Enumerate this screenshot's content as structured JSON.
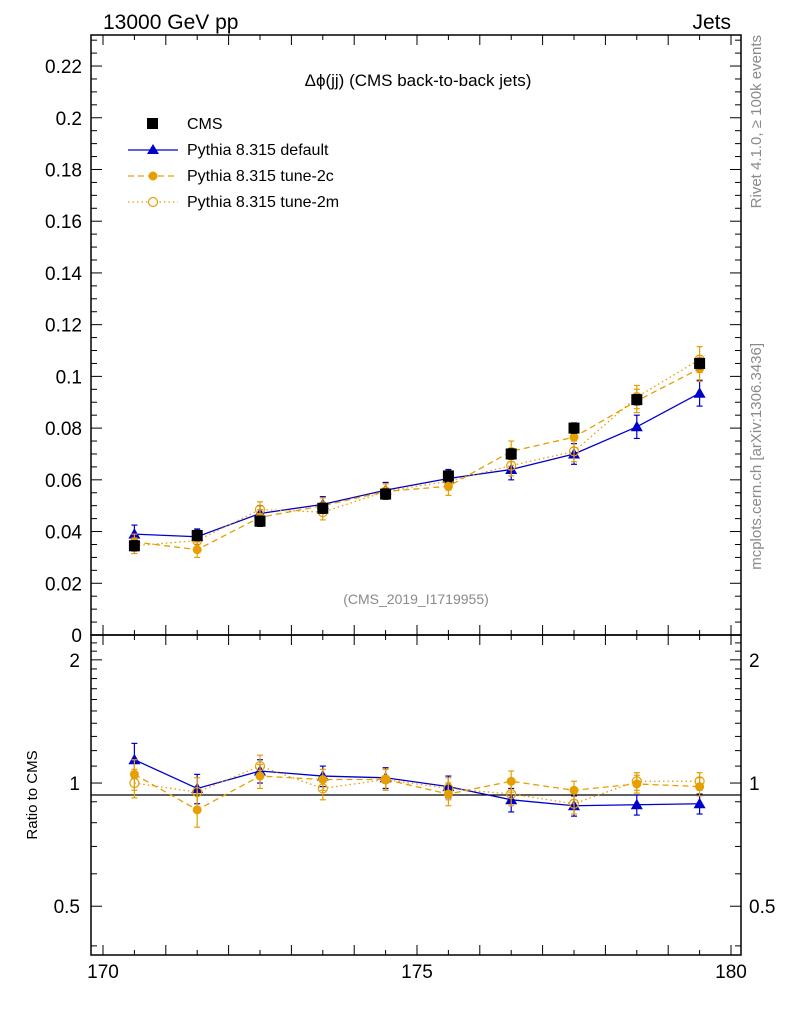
{
  "header": {
    "left": "13000 GeV pp",
    "right": "Jets"
  },
  "chart_data": {
    "type": "line",
    "title": "Δϕ(jj) (CMS back-to-back jets)",
    "analysis_id": "(CMS_2019_I1719955)",
    "side_label_top": "Rivet 4.1.0, ≥ 100k events",
    "side_label_bottom": "mcplots.cern.ch [arXiv:1306.3436]",
    "xlim": [
      170,
      180
    ],
    "ylim": [
      0,
      0.232
    ],
    "x_ticks": [
      "170",
      "175",
      "180"
    ],
    "y_ticks": [
      "0",
      "0.02",
      "0.04",
      "0.06",
      "0.08",
      "0.1",
      "0.12",
      "0.14",
      "0.16",
      "0.18",
      "0.2",
      "0.22"
    ],
    "ratio_ylabel": "Ratio to CMS",
    "ratio_ylim": [
      0.38,
      2.3
    ],
    "ratio_ticks": [
      "0.5",
      "1",
      "2"
    ],
    "x": [
      170.5,
      171.5,
      172.5,
      173.5,
      174.5,
      175.5,
      176.5,
      177.5,
      178.5,
      179.5
    ],
    "series": [
      {
        "name": "CMS",
        "color": "#000000",
        "style": "marker",
        "values": [
          0.0345,
          0.0385,
          0.044,
          0.049,
          0.0545,
          0.0615,
          0.07,
          0.08,
          0.091,
          0.105
        ],
        "errors": [
          0.002,
          0.002,
          0.002,
          0.002,
          0.002,
          0.002,
          0.002,
          0.002,
          0.002,
          0.002
        ]
      },
      {
        "name": "Pythia 8.315 default",
        "color": "#0000cc",
        "style": "solid",
        "values": [
          0.039,
          0.038,
          0.047,
          0.0505,
          0.056,
          0.0605,
          0.064,
          0.07,
          0.0805,
          0.0935
        ],
        "errors": [
          0.0035,
          0.003,
          0.003,
          0.003,
          0.003,
          0.0035,
          0.004,
          0.004,
          0.0045,
          0.005
        ],
        "ratio": [
          1.14,
          0.97,
          1.07,
          1.04,
          1.03,
          0.98,
          0.91,
          0.88,
          0.885,
          0.89
        ],
        "ratio_errors": [
          0.11,
          0.08,
          0.07,
          0.06,
          0.06,
          0.06,
          0.06,
          0.05,
          0.05,
          0.05
        ]
      },
      {
        "name": "Pythia 8.315 tune-2c",
        "color": "#e69f00",
        "style": "dashed",
        "values": [
          0.036,
          0.033,
          0.0455,
          0.05,
          0.0555,
          0.0575,
          0.071,
          0.0765,
          0.0905,
          0.103
        ],
        "errors": [
          0.003,
          0.003,
          0.003,
          0.003,
          0.003,
          0.0035,
          0.004,
          0.004,
          0.0045,
          0.005
        ],
        "ratio": [
          1.05,
          0.86,
          1.04,
          1.02,
          1.02,
          0.94,
          1.01,
          0.96,
          0.995,
          0.98
        ],
        "ratio_errors": [
          0.09,
          0.08,
          0.07,
          0.06,
          0.06,
          0.06,
          0.06,
          0.05,
          0.05,
          0.05
        ]
      },
      {
        "name": "Pythia 8.315 tune-2m",
        "color": "#e69f00",
        "style": "dotted",
        "values": [
          0.0345,
          0.0365,
          0.0485,
          0.0475,
          0.0555,
          0.0595,
          0.0655,
          0.071,
          0.092,
          0.1065
        ],
        "errors": [
          0.003,
          0.003,
          0.003,
          0.003,
          0.003,
          0.0035,
          0.004,
          0.004,
          0.0045,
          0.005
        ],
        "ratio": [
          1.0,
          0.95,
          1.1,
          0.97,
          1.02,
          0.97,
          0.94,
          0.89,
          1.01,
          1.01
        ],
        "ratio_errors": [
          0.08,
          0.08,
          0.07,
          0.06,
          0.06,
          0.06,
          0.06,
          0.05,
          0.05,
          0.05
        ]
      }
    ]
  }
}
